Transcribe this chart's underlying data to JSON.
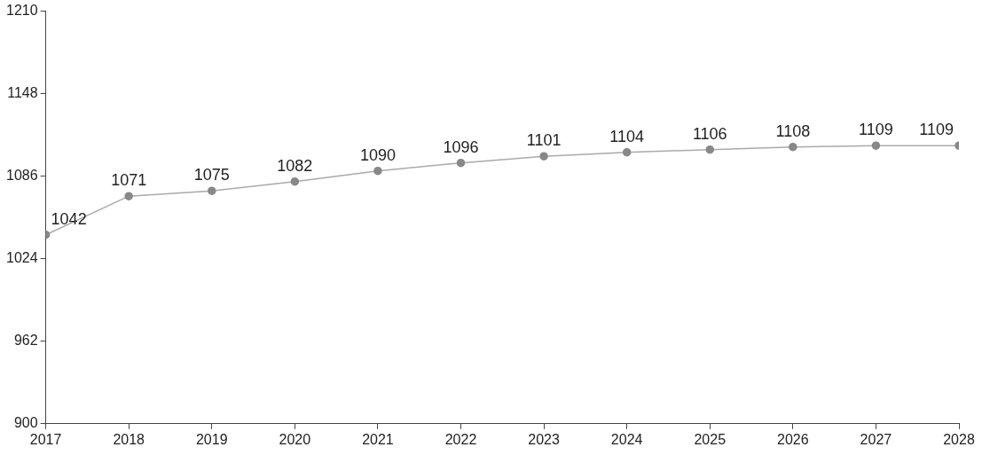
{
  "chart_data": {
    "type": "line",
    "x": [
      2017,
      2018,
      2019,
      2020,
      2021,
      2022,
      2023,
      2024,
      2025,
      2026,
      2027,
      2028
    ],
    "series": [
      {
        "color": "#888888",
        "values": [
          1042,
          1071,
          1075,
          1082,
          1090,
          1096,
          1101,
          1104,
          1106,
          1108,
          1109,
          1109
        ]
      }
    ],
    "xlim": [
      2017,
      2028
    ],
    "xticks": [
      2017,
      2018,
      2019,
      2020,
      2021,
      2022,
      2023,
      2024,
      2025,
      2026,
      2027,
      2028
    ],
    "ylim": [
      900,
      1210
    ],
    "yticks": [
      900,
      962,
      1024,
      1086,
      1148,
      1210
    ],
    "grid": false,
    "legend": false,
    "marker": "circle",
    "line_style": "solid",
    "data_labels": true
  }
}
